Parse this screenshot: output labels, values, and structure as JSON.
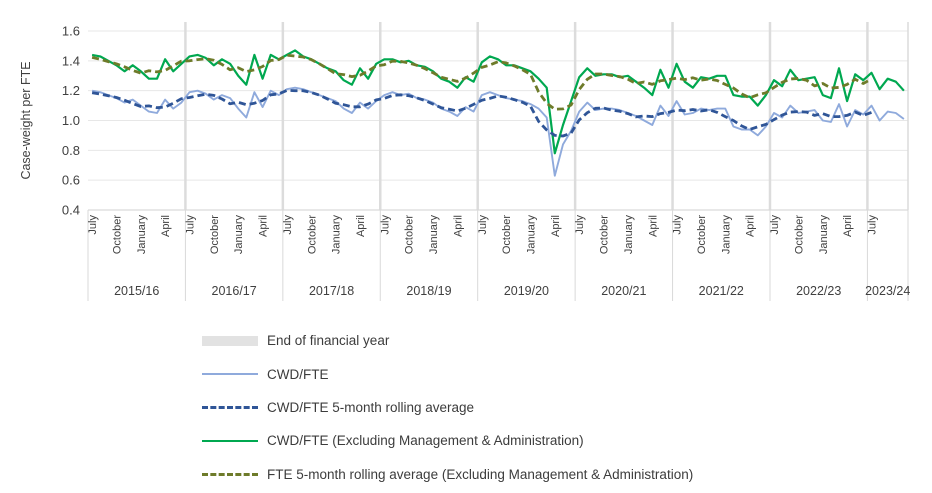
{
  "chart": {
    "y_axis": {
      "title": "Case-weight per FTE",
      "min": 0.4,
      "max": 1.6,
      "step": 0.2,
      "tick_labels": [
        "1.6",
        "1.4",
        "1.2",
        "1.0",
        "0.8",
        "0.6",
        "0.4"
      ]
    },
    "x_axis": {
      "tick_month_labels": [
        "July",
        "October",
        "January",
        "April"
      ],
      "tick_month_offsets": [
        0,
        3,
        6,
        9
      ],
      "final_tick": {
        "index": 96,
        "label": "July"
      },
      "year_labels": [
        "2015/16",
        "2016/17",
        "2017/18",
        "2018/19",
        "2019/20",
        "2020/21",
        "2021/22",
        "2022/23",
        "2023/24"
      ],
      "months_per_year": 12,
      "n_categories": 101,
      "start_category": "July 2015",
      "end_category": "November 2023"
    },
    "colors": {
      "grid": "#E7E7E7",
      "axis": "#D9D9D9",
      "year_band": "#DCDCDC",
      "text": "#404040"
    }
  },
  "chart_data": {
    "type": "line",
    "frequency": "monthly",
    "x_start": "July 2015",
    "x_end": "November 2023",
    "ylim": [
      0.4,
      1.6
    ],
    "grid": true,
    "legend_position": "bottom",
    "series": [
      {
        "name": "CWD/FTE",
        "color": "#8FAADC",
        "style": "solid",
        "values": [
          1.2,
          1.19,
          1.17,
          1.15,
          1.12,
          1.14,
          1.1,
          1.06,
          1.05,
          1.14,
          1.08,
          1.12,
          1.19,
          1.2,
          1.18,
          1.14,
          1.17,
          1.15,
          1.08,
          1.02,
          1.19,
          1.09,
          1.2,
          1.17,
          1.21,
          1.22,
          1.21,
          1.19,
          1.17,
          1.15,
          1.13,
          1.08,
          1.05,
          1.12,
          1.08,
          1.13,
          1.17,
          1.19,
          1.17,
          1.18,
          1.15,
          1.14,
          1.12,
          1.08,
          1.06,
          1.03,
          1.09,
          1.06,
          1.17,
          1.19,
          1.17,
          1.15,
          1.14,
          1.13,
          1.11,
          1.08,
          1.02,
          0.63,
          0.84,
          0.93,
          1.06,
          1.12,
          1.07,
          1.08,
          1.08,
          1.07,
          1.05,
          1.03,
          1.0,
          0.97,
          1.1,
          1.03,
          1.13,
          1.04,
          1.05,
          1.08,
          1.07,
          1.08,
          1.08,
          0.96,
          0.94,
          0.94,
          0.9,
          0.96,
          1.05,
          1.02,
          1.1,
          1.05,
          1.06,
          1.07,
          1.0,
          0.99,
          1.11,
          0.96,
          1.07,
          1.04,
          1.1,
          1.0,
          1.06,
          1.05,
          1.01
        ]
      },
      {
        "name": "CWD/FTE 5-month rolling average",
        "color": "#2F5597",
        "style": "dashed",
        "derived_from": "CWD/FTE",
        "derivation": "5-month centered rolling average",
        "truncate_last": 4
      },
      {
        "name": "CWD/FTE (Excluding Management & Administration)",
        "color": "#00A850",
        "style": "solid",
        "values": [
          1.44,
          1.43,
          1.4,
          1.37,
          1.33,
          1.37,
          1.33,
          1.28,
          1.28,
          1.41,
          1.33,
          1.38,
          1.43,
          1.44,
          1.42,
          1.37,
          1.41,
          1.38,
          1.3,
          1.24,
          1.44,
          1.28,
          1.44,
          1.41,
          1.44,
          1.47,
          1.43,
          1.41,
          1.38,
          1.35,
          1.33,
          1.27,
          1.24,
          1.35,
          1.28,
          1.38,
          1.41,
          1.41,
          1.39,
          1.4,
          1.37,
          1.36,
          1.33,
          1.28,
          1.26,
          1.22,
          1.29,
          1.26,
          1.39,
          1.43,
          1.41,
          1.37,
          1.37,
          1.35,
          1.33,
          1.28,
          1.22,
          0.78,
          0.97,
          1.13,
          1.29,
          1.35,
          1.3,
          1.31,
          1.31,
          1.29,
          1.3,
          1.26,
          1.22,
          1.17,
          1.34,
          1.22,
          1.38,
          1.26,
          1.22,
          1.29,
          1.28,
          1.3,
          1.3,
          1.17,
          1.16,
          1.16,
          1.1,
          1.17,
          1.27,
          1.23,
          1.34,
          1.27,
          1.28,
          1.29,
          1.17,
          1.15,
          1.35,
          1.13,
          1.31,
          1.27,
          1.32,
          1.21,
          1.28,
          1.26,
          1.2
        ]
      },
      {
        "name": "FTE 5-month rolling average (Excluding Management & Administration)",
        "color": "#6E7B2A",
        "style": "dashed",
        "derived_from": "CWD/FTE (Excluding Management & Administration)",
        "derivation": "5-month centered rolling average",
        "truncate_last": 4
      }
    ],
    "annotations": {
      "end_of_financial_year_bands": "vertical light-gray band at each June/July boundary",
      "band_color": "#DCDCDC"
    }
  },
  "legend": {
    "items": [
      {
        "label": "End of financial year",
        "swatch": "band",
        "color": "#E2E2E2"
      },
      {
        "label": "CWD/FTE",
        "swatch": "solid",
        "color": "#8FAADC"
      },
      {
        "label": "CWD/FTE 5-month rolling average",
        "swatch": "dashed",
        "color": "#2F5597"
      },
      {
        "label": "CWD/FTE (Excluding Management & Administration)",
        "swatch": "solid",
        "color": "#00A850"
      },
      {
        "label": "FTE 5-month rolling average (Excluding Management & Administration)",
        "swatch": "dashed",
        "color": "#6E7B2A"
      }
    ]
  }
}
